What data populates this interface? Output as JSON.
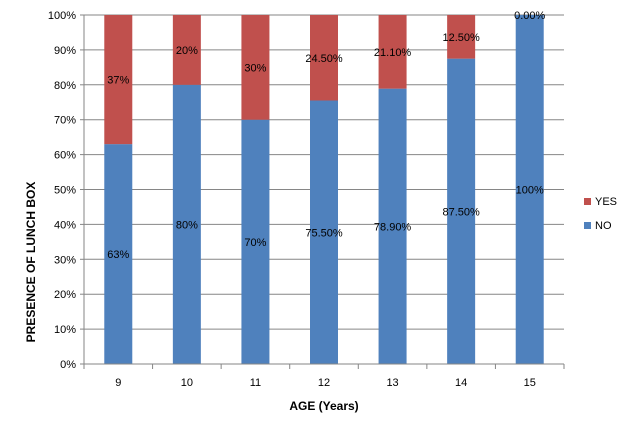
{
  "chart_data": {
    "type": "bar",
    "stacked": true,
    "percent_stacked": true,
    "categories": [
      "9",
      "10",
      "11",
      "12",
      "13",
      "14",
      "15"
    ],
    "series": [
      {
        "name": "NO",
        "color": "#4F81BD",
        "values": [
          63,
          80,
          70,
          75.5,
          78.9,
          87.5,
          100
        ],
        "labels": [
          "63%",
          "80%",
          "70%",
          "75.50%",
          "78.90%",
          "87.50%",
          "100%"
        ]
      },
      {
        "name": "YES",
        "color": "#C0504D",
        "values": [
          37,
          20,
          30,
          24.5,
          21.1,
          12.5,
          0
        ],
        "labels": [
          "37%",
          "20%",
          "30%",
          "24.50%",
          "21.10%",
          "12.50%",
          "0.00%"
        ]
      }
    ],
    "xlabel": "AGE (Years)",
    "ylabel": "PRESENCE OF LUNCH BOX",
    "ylim": [
      0,
      100
    ],
    "yticks": [
      "0%",
      "10%",
      "20%",
      "30%",
      "40%",
      "50%",
      "60%",
      "70%",
      "80%",
      "90%",
      "100%"
    ],
    "grid": true,
    "legend_position": "right"
  }
}
